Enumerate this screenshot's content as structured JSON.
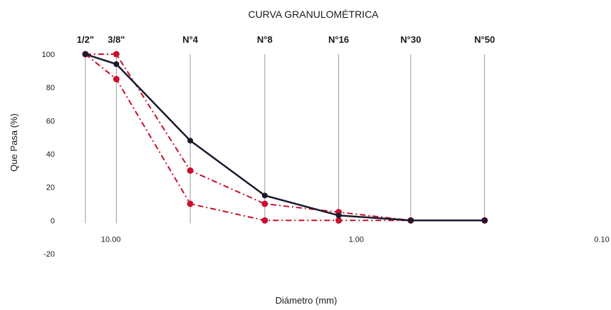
{
  "chart_data": {
    "type": "line",
    "title": "CURVA GRANULOMÉTRICA",
    "xlabel": "Diámetro (mm)",
    "ylabel": "Que Pasa (%)",
    "x_scale": "log",
    "x_reversed": true,
    "xlim": [
      15,
      0.1
    ],
    "ylim": [
      -20,
      100
    ],
    "y_ticks": [
      100,
      80,
      60,
      40,
      20,
      0,
      -20
    ],
    "x_tick_labels": [
      {
        "value": 10.0,
        "label": "10.00"
      },
      {
        "value": 1.0,
        "label": "1.00"
      },
      {
        "value": 0.1,
        "label": "0.10"
      }
    ],
    "sieves": [
      {
        "label": "1/2\"",
        "x": 12.7
      },
      {
        "label": "3/8\"",
        "x": 9.5
      },
      {
        "label": "N°4",
        "x": 4.75
      },
      {
        "label": "N°8",
        "x": 2.36
      },
      {
        "label": "N°16",
        "x": 1.18
      },
      {
        "label": "N°30",
        "x": 0.6
      },
      {
        "label": "N°50",
        "x": 0.3
      }
    ],
    "grid": false,
    "series": [
      {
        "role": "sample",
        "color": "#1a1a2e",
        "style": "solid",
        "x": [
          12.7,
          9.5,
          4.75,
          2.36,
          1.18,
          0.6,
          0.3
        ],
        "y": [
          100,
          94,
          48,
          15,
          3,
          0,
          0
        ]
      },
      {
        "role": "upper-limit",
        "color": "#c8102e",
        "style": "dashdot",
        "x": [
          12.7,
          9.5,
          4.75,
          2.36,
          1.18,
          0.6,
          0.3
        ],
        "y": [
          100,
          100,
          30,
          10,
          5,
          0,
          0
        ]
      },
      {
        "role": "lower-limit",
        "color": "#c8102e",
        "style": "dashdot",
        "x": [
          12.7,
          9.5,
          4.75,
          2.36,
          1.18,
          0.6,
          0.3
        ],
        "y": [
          100,
          85,
          10,
          0,
          0,
          0,
          0
        ]
      }
    ]
  }
}
